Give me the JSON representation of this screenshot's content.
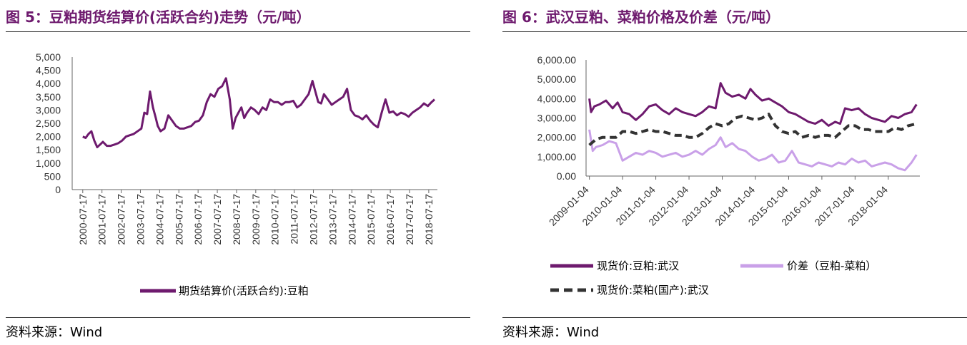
{
  "colors": {
    "title": "#6e1a6e",
    "spot_soymeal": "#6e1a6e",
    "spread": "#c9a0e8",
    "spot_rapemeal": "#333333"
  },
  "left": {
    "title": "图 5：豆粕期货结算价(活跃合约)走势（元/吨）",
    "source": "资料来源：Wind"
  },
  "right": {
    "title": "图 6：武汉豆粕、菜粕价格及价差（元/吨）",
    "source": "资料来源：Wind"
  },
  "chart_data": [
    {
      "type": "line",
      "title": "",
      "xlabel": "",
      "ylabel": "",
      "ylim": [
        0,
        5000
      ],
      "y_ticks": [
        "5,000",
        "4,500",
        "4,000",
        "3,500",
        "3,000",
        "2,500",
        "2,000",
        "1,500",
        "1,000",
        "500",
        "0"
      ],
      "y_tick_values": [
        5000,
        4500,
        4000,
        3500,
        3000,
        2500,
        2000,
        1500,
        1000,
        500,
        0
      ],
      "x_tick_labels": [
        "2000-07-17",
        "2001-07-17",
        "2002-07-17",
        "2003-07-17",
        "2004-07-17",
        "2005-07-17",
        "2006-07-17",
        "2007-07-17",
        "2008-07-17",
        "2009-07-17",
        "2010-07-17",
        "2011-07-17",
        "2012-07-17",
        "2013-07-17",
        "2014-07-17",
        "2015-07-17",
        "2016-07-17",
        "2017-07-17",
        "2018-07-17"
      ],
      "legend_position": "bottom",
      "series": [
        {
          "name": "期货结算价(活跃合约):豆粕",
          "color": "#6e1a6e",
          "x": [
            2000.55,
            2000.7,
            2000.85,
            2001.0,
            2001.15,
            2001.3,
            2001.45,
            2001.6,
            2001.8,
            2002.0,
            2002.2,
            2002.4,
            2002.6,
            2002.8,
            2003.0,
            2003.2,
            2003.4,
            2003.6,
            2003.75,
            2003.9,
            2004.05,
            2004.2,
            2004.35,
            2004.45,
            2004.6,
            2004.8,
            2005.0,
            2005.2,
            2005.4,
            2005.6,
            2005.8,
            2006.0,
            2006.2,
            2006.4,
            2006.6,
            2006.8,
            2007.0,
            2007.2,
            2007.4,
            2007.6,
            2007.8,
            2008.0,
            2008.2,
            2008.35,
            2008.5,
            2008.65,
            2008.8,
            2008.95,
            2009.1,
            2009.3,
            2009.5,
            2009.7,
            2009.9,
            2010.1,
            2010.3,
            2010.5,
            2010.7,
            2010.9,
            2011.1,
            2011.3,
            2011.5,
            2011.7,
            2011.9,
            2012.1,
            2012.3,
            2012.5,
            2012.65,
            2012.8,
            2012.95,
            2013.1,
            2013.3,
            2013.5,
            2013.7,
            2013.9,
            2014.1,
            2014.3,
            2014.5,
            2014.7,
            2014.9,
            2015.1,
            2015.3,
            2015.5,
            2015.7,
            2015.9,
            2016.1,
            2016.3,
            2016.5,
            2016.7,
            2016.9,
            2017.1,
            2017.3,
            2017.5,
            2017.7,
            2017.9,
            2018.1,
            2018.3,
            2018.5,
            2018.7,
            2018.85
          ],
          "values": [
            2000,
            1950,
            2100,
            2200,
            1850,
            1600,
            1700,
            1800,
            1650,
            1650,
            1700,
            1750,
            1850,
            2000,
            2050,
            2100,
            2200,
            2300,
            2900,
            2850,
            3700,
            3100,
            2700,
            2400,
            2200,
            2300,
            2800,
            2600,
            2400,
            2300,
            2300,
            2350,
            2400,
            2550,
            2600,
            2800,
            3300,
            3600,
            3500,
            3800,
            3900,
            4200,
            3400,
            2300,
            2700,
            2900,
            3100,
            2700,
            2900,
            3100,
            3000,
            2850,
            3100,
            3000,
            3400,
            3300,
            3300,
            3200,
            3300,
            3300,
            3350,
            3100,
            3200,
            3400,
            3600,
            4100,
            3700,
            3300,
            3250,
            3600,
            3400,
            3200,
            3300,
            3400,
            3500,
            3800,
            3000,
            2800,
            2750,
            2650,
            2800,
            2600,
            2450,
            2350,
            2900,
            3400,
            2900,
            2950,
            2800,
            2900,
            2850,
            2750,
            2900,
            3000,
            3100,
            3250,
            3150,
            3300,
            3400
          ]
        }
      ]
    },
    {
      "type": "line",
      "title": "",
      "xlabel": "",
      "ylabel": "",
      "ylim": [
        0,
        6000
      ],
      "y_ticks": [
        "6,000.00",
        "5,000.00",
        "4,000.00",
        "3,000.00",
        "2,000.00",
        "1,000.00",
        "0.00"
      ],
      "y_tick_values": [
        6000,
        5000,
        4000,
        3000,
        2000,
        1000,
        0
      ],
      "x_tick_labels": [
        "2009-01-04",
        "2010-01-04",
        "2011-01-04",
        "2012-01-04",
        "2013-01-04",
        "2014-01-04",
        "2015-01-04",
        "2016-01-04",
        "2017-01-04",
        "2018-01-04"
      ],
      "legend_position": "bottom",
      "series": [
        {
          "name": "现货价:豆粕:武汉",
          "color": "#6e1a6e",
          "style": "solid",
          "x": [
            2009.0,
            2009.05,
            2009.15,
            2009.3,
            2009.5,
            2009.7,
            2009.85,
            2010.0,
            2010.2,
            2010.4,
            2010.6,
            2010.8,
            2011.0,
            2011.2,
            2011.4,
            2011.6,
            2011.8,
            2012.0,
            2012.2,
            2012.4,
            2012.6,
            2012.8,
            2012.95,
            2013.1,
            2013.3,
            2013.5,
            2013.7,
            2013.85,
            2014.0,
            2014.2,
            2014.4,
            2014.6,
            2014.8,
            2015.0,
            2015.2,
            2015.4,
            2015.6,
            2015.8,
            2016.0,
            2016.2,
            2016.4,
            2016.55,
            2016.7,
            2016.9,
            2017.1,
            2017.3,
            2017.5,
            2017.7,
            2017.9,
            2018.1,
            2018.3,
            2018.5,
            2018.7,
            2018.85
          ],
          "values": [
            4000,
            3300,
            3600,
            3700,
            3900,
            3500,
            3800,
            3300,
            3200,
            2900,
            3200,
            3600,
            3700,
            3400,
            3200,
            3500,
            3300,
            3200,
            3100,
            3300,
            3600,
            3500,
            4800,
            4300,
            4100,
            4200,
            4000,
            4500,
            4200,
            3900,
            4000,
            3800,
            3600,
            3300,
            3200,
            3000,
            2800,
            2700,
            2900,
            2600,
            2800,
            2700,
            3500,
            3400,
            3500,
            3200,
            3000,
            2900,
            2800,
            3100,
            3000,
            3200,
            3300,
            3700
          ]
        },
        {
          "name": "价差（豆粕-菜粕）",
          "color": "#c9a0e8",
          "style": "solid",
          "x": [
            2009.0,
            2009.1,
            2009.2,
            2009.4,
            2009.6,
            2009.8,
            2010.0,
            2010.2,
            2010.4,
            2010.6,
            2010.8,
            2011.0,
            2011.2,
            2011.4,
            2011.6,
            2011.8,
            2012.0,
            2012.2,
            2012.4,
            2012.6,
            2012.8,
            2012.95,
            2013.1,
            2013.3,
            2013.5,
            2013.7,
            2013.9,
            2014.1,
            2014.3,
            2014.5,
            2014.7,
            2014.9,
            2015.1,
            2015.3,
            2015.5,
            2015.7,
            2015.9,
            2016.1,
            2016.3,
            2016.5,
            2016.7,
            2016.9,
            2017.1,
            2017.3,
            2017.5,
            2017.7,
            2017.9,
            2018.1,
            2018.3,
            2018.5,
            2018.7,
            2018.85
          ],
          "values": [
            2400,
            1300,
            1500,
            1600,
            1800,
            1700,
            800,
            1000,
            1200,
            1100,
            1300,
            1200,
            1000,
            1100,
            1200,
            1000,
            1100,
            1300,
            1100,
            1400,
            1600,
            2000,
            1500,
            1700,
            1400,
            1300,
            1000,
            800,
            900,
            1100,
            700,
            800,
            1300,
            700,
            600,
            500,
            700,
            600,
            500,
            700,
            600,
            900,
            700,
            800,
            500,
            600,
            700,
            600,
            400,
            300,
            700,
            1100
          ]
        },
        {
          "name": "现货价:菜粕(国产):武汉",
          "color": "#333333",
          "style": "dashed",
          "x": [
            2009.0,
            2009.2,
            2009.4,
            2009.6,
            2009.8,
            2010.0,
            2010.2,
            2010.4,
            2010.6,
            2010.8,
            2011.0,
            2011.2,
            2011.4,
            2011.6,
            2011.8,
            2012.0,
            2012.2,
            2012.4,
            2012.6,
            2012.8,
            2013.0,
            2013.2,
            2013.4,
            2013.6,
            2013.8,
            2014.0,
            2014.2,
            2014.4,
            2014.6,
            2014.8,
            2015.0,
            2015.2,
            2015.4,
            2015.6,
            2015.8,
            2016.0,
            2016.2,
            2016.4,
            2016.6,
            2016.8,
            2017.0,
            2017.2,
            2017.4,
            2017.6,
            2017.8,
            2018.0,
            2018.2,
            2018.4,
            2018.6,
            2018.85
          ],
          "values": [
            1600,
            1900,
            2000,
            2000,
            2000,
            2300,
            2300,
            2200,
            2300,
            2400,
            2300,
            2300,
            2200,
            2100,
            2100,
            2000,
            2000,
            2200,
            2500,
            2700,
            2600,
            2700,
            3000,
            3100,
            3000,
            2900,
            3000,
            3200,
            2600,
            2300,
            2200,
            2300,
            2000,
            2100,
            2000,
            2100,
            2100,
            2000,
            2300,
            2600,
            2600,
            2400,
            2400,
            2300,
            2300,
            2300,
            2500,
            2400,
            2600,
            2700
          ]
        }
      ]
    }
  ]
}
